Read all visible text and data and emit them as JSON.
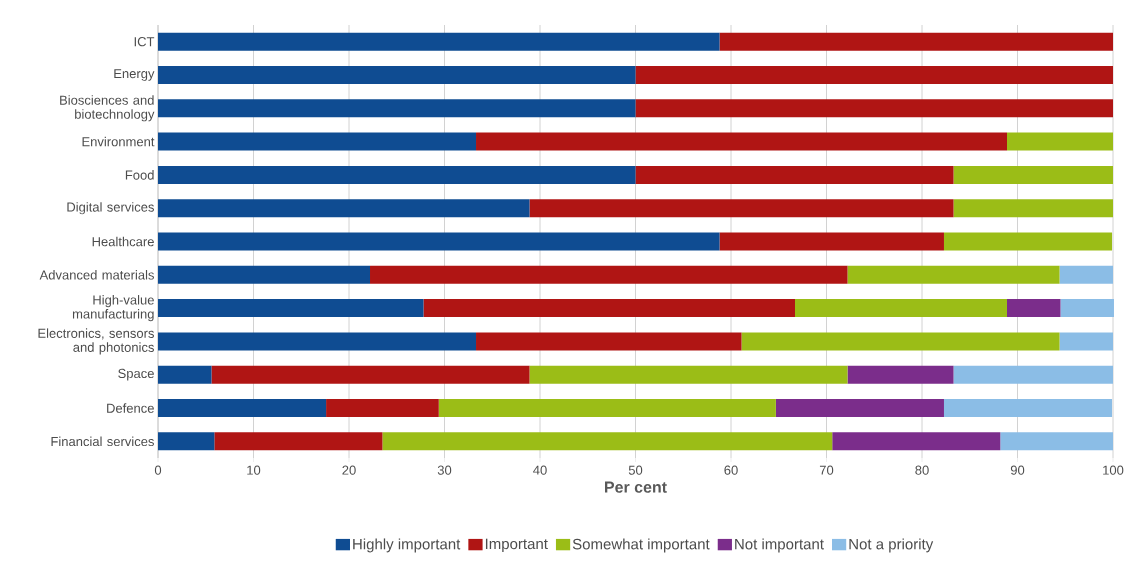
{
  "chart_data": {
    "type": "bar",
    "orientation": "horizontal",
    "stacked": true,
    "xlabel": "Per cent",
    "categories": [
      "ICT",
      "Energy",
      "Biosciences and biotechnology",
      "Environment",
      "Food",
      "Digital services",
      "Healthcare",
      "Advanced materials",
      "High-value manufacturing",
      "Electronics, sensors and photonics",
      "Space",
      "Defence",
      "Financial services"
    ],
    "series": [
      {
        "name": "Highly important",
        "color": "#0f4c92",
        "values": [
          58.8,
          50,
          50,
          33.3,
          50,
          38.9,
          58.8,
          22.2,
          27.8,
          33.3,
          5.6,
          17.6,
          5.9
        ]
      },
      {
        "name": "Important",
        "color": "#b01514",
        "values": [
          41.2,
          50,
          50,
          55.6,
          33.3,
          44.4,
          23.5,
          50,
          38.9,
          27.8,
          33.3,
          11.8,
          17.6
        ]
      },
      {
        "name": "Somewhat important",
        "color": "#9bbd17",
        "values": [
          null,
          null,
          null,
          11.1,
          16.7,
          16.7,
          17.6,
          22.2,
          22.2,
          33.3,
          33.3,
          35.3,
          47.1
        ]
      },
      {
        "name": "Not important",
        "color": "#7b2d8b",
        "values": [
          null,
          null,
          null,
          null,
          null,
          null,
          null,
          null,
          5.6,
          null,
          11.1,
          17.6,
          17.6
        ]
      },
      {
        "name": "Not a priority",
        "color": "#8bbde6",
        "values": [
          null,
          null,
          null,
          null,
          null,
          null,
          null,
          5.6,
          5.6,
          5.6,
          16.7,
          17.6,
          11.8
        ]
      }
    ],
    "xlim": [
      0,
      100
    ],
    "xticks": [
      0,
      10,
      20,
      30,
      40,
      50,
      60,
      70,
      80,
      90,
      100
    ],
    "grid": "x",
    "legend": "bottom"
  }
}
